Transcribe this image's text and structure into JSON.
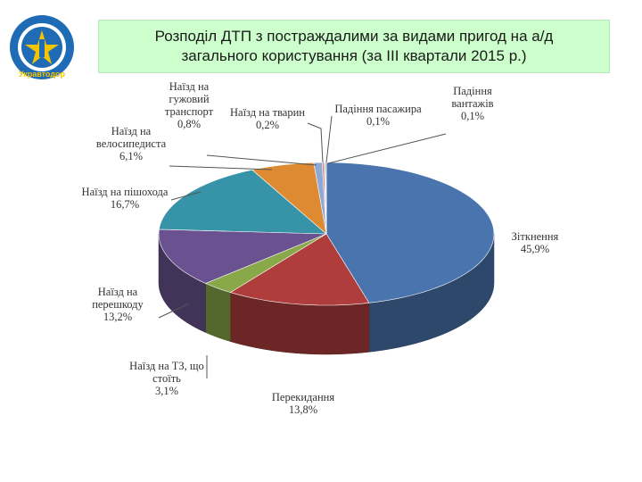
{
  "logo": {
    "icon": "ukravtodor-logo",
    "text": "Укравтодор",
    "colors": {
      "ring": "#1f6bb5",
      "center": "#f4c400",
      "emblem": "#f4c400"
    }
  },
  "title": "Розподіл ДТП з постраждалими за видами пригод на а/д загального користування (за ІІІ квартали 2015 р.)",
  "chart_data": {
    "type": "pie",
    "title": "Розподіл ДТП з постраждалими за видами пригод на а/д загального користування (за ІІІ квартали 2015 р.)",
    "unit": "%",
    "legend": "none",
    "slices": [
      {
        "label": "Зіткнення",
        "value": 45.9,
        "value_label": "45,9%",
        "color": "#4a74ad"
      },
      {
        "label": "Перекидання",
        "value": 13.8,
        "value_label": "13,8%",
        "color": "#ae3d3b"
      },
      {
        "label": "Наїзд на ТЗ, що стоїть",
        "value": 3.1,
        "value_label": "3,1%",
        "color": "#88a84a"
      },
      {
        "label": "Наїзд на перешкоду",
        "value": 13.2,
        "value_label": "13,2%",
        "color": "#6a5290"
      },
      {
        "label": "Наїзд на пішохода",
        "value": 16.7,
        "value_label": "16,7%",
        "color": "#3693a8"
      },
      {
        "label": "Наїзд на велосипедиста",
        "value": 6.1,
        "value_label": "6,1%",
        "color": "#dd8a32"
      },
      {
        "label": "Наїзд на гужовий транспорт",
        "value": 0.8,
        "value_label": "0,8%",
        "color": "#8ea9d6"
      },
      {
        "label": "Наїзд на тварин",
        "value": 0.2,
        "value_label": "0,2%",
        "color": "#cc8684"
      },
      {
        "label": "Падіння пасажира",
        "value": 0.1,
        "value_label": "0,1%",
        "color": "#b6c98a"
      },
      {
        "label": "Падіння вантажів",
        "value": 0.1,
        "value_label": "0,1%",
        "color": "#a695c0"
      }
    ]
  }
}
